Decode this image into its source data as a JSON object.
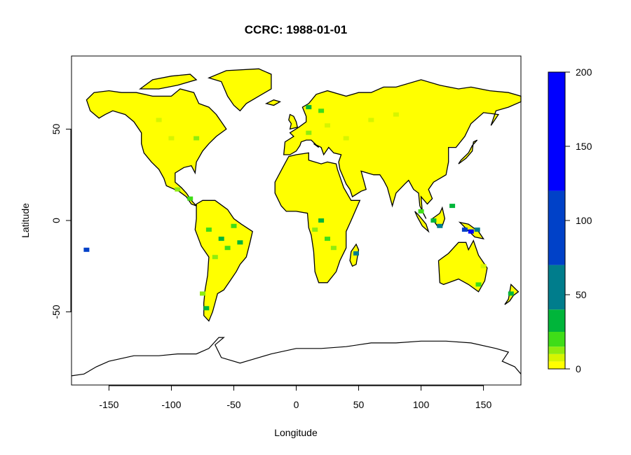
{
  "title": "CCRC: 1988-01-01",
  "map": {
    "x_axis_label": "Longitude",
    "y_axis_label": "Latitude",
    "xlim": [
      -180,
      180
    ],
    "ylim": [
      -90,
      90
    ],
    "x_ticks": [
      -150,
      -100,
      -50,
      0,
      50,
      100,
      150
    ],
    "y_ticks": [
      -50,
      0,
      50
    ],
    "x_tick_labels": [
      "-150",
      "-100",
      "-50",
      "0",
      "50",
      "100",
      "150"
    ],
    "y_tick_labels": [
      "-50",
      "0",
      "50"
    ],
    "land_color": "#ffff00",
    "coastline_color": "#000000"
  },
  "legend": {
    "range": [
      0,
      200
    ],
    "ticks": [
      0,
      50,
      100,
      150,
      200
    ],
    "tick_labels": [
      "0",
      "50",
      "100",
      "150",
      "200"
    ],
    "bins": [
      {
        "from": 0,
        "to": 5,
        "color": "#ffff00"
      },
      {
        "from": 5,
        "to": 10,
        "color": "#d6f500"
      },
      {
        "from": 10,
        "to": 15,
        "color": "#8fec0e"
      },
      {
        "from": 15,
        "to": 25,
        "color": "#3fdd18"
      },
      {
        "from": 25,
        "to": 40,
        "color": "#00b53a"
      },
      {
        "from": 40,
        "to": 70,
        "color": "#007d8c"
      },
      {
        "from": 70,
        "to": 120,
        "color": "#0041c8"
      },
      {
        "from": 120,
        "to": 200,
        "color": "#0000ff"
      }
    ]
  }
}
